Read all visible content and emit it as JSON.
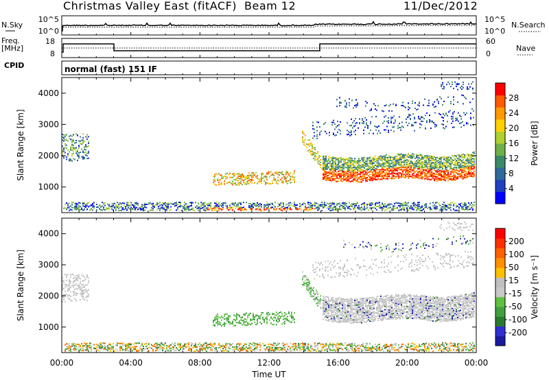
{
  "header": {
    "title": "Christmas Valley East (fitACF)",
    "beam": "Beam 12",
    "date": "11/Dec/2012"
  },
  "top_panels": {
    "nsky_label": "N.Sky",
    "freq_label_1": "Freq.",
    "freq_label_2": "[MHz]",
    "cpid_label": "CPID",
    "nsearch_label": "N.Search",
    "nave_label": "Nave",
    "noise_ticks": [
      "10^5",
      "10^0"
    ],
    "freq_ticks": [
      "18",
      "8"
    ],
    "nave_ticks": [
      "60",
      "0"
    ],
    "cpid_text": "normal (fast) 151 IF"
  },
  "chart_data": [
    {
      "type": "heatmap",
      "name": "power-panel",
      "ylabel": "Slant Range [km]",
      "ylim": [
        180,
        4500
      ],
      "y_ticks": [
        1000,
        2000,
        3000,
        4000
      ],
      "xlim": [
        0,
        24
      ],
      "colorbar": {
        "label": "Power [dB]",
        "ticks": [
          "28",
          "24",
          "20",
          "16",
          "12",
          "8",
          "4"
        ],
        "colors": [
          "#0000ff",
          "#2040c0",
          "#2f6a9a",
          "#3a8a6a",
          "#6fb04a",
          "#b0d030",
          "#ffd000",
          "#ff9a00",
          "#ff5a00",
          "#ff0000"
        ]
      }
    },
    {
      "type": "heatmap",
      "name": "velocity-panel",
      "ylabel": "Slant Range [km]",
      "ylim": [
        180,
        4500
      ],
      "y_ticks": [
        1000,
        2000,
        3000,
        4000
      ],
      "xlim": [
        0,
        24
      ],
      "x_ticks": [
        "00:00",
        "04:00",
        "08:00",
        "12:00",
        "16:00",
        "20:00",
        "00:00"
      ],
      "xlabel": "Time UT",
      "colorbar": {
        "label": "Velocity [m s⁻¹]",
        "ticks": [
          "200",
          "100",
          "50",
          "15",
          "-15",
          "-50",
          "-100",
          "-200"
        ],
        "colors": [
          "#1a1aa0",
          "#3030d0",
          "#2a7a30",
          "#40a040",
          "#60c040",
          "#c8c8c8",
          "#c0c0c0",
          "#ffc000",
          "#ff9000",
          "#ff6000",
          "#ff3000",
          "#ff0000"
        ]
      }
    }
  ]
}
